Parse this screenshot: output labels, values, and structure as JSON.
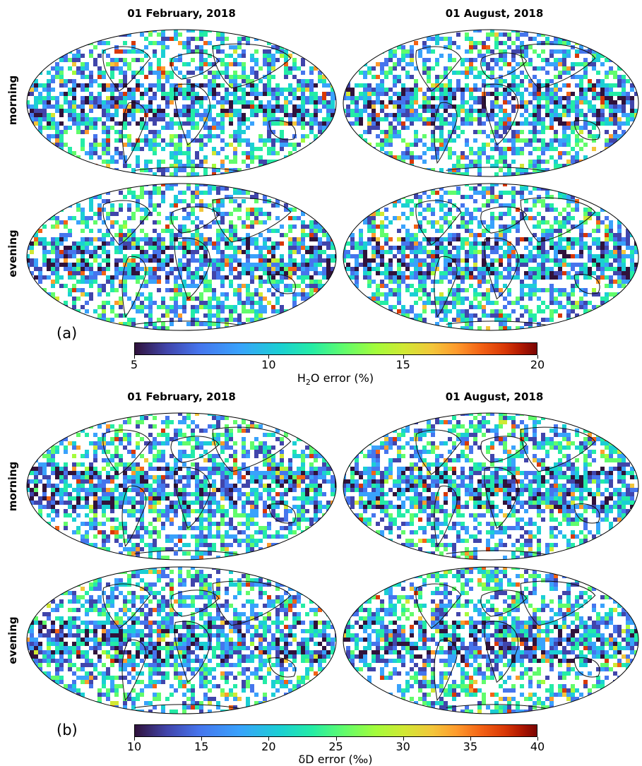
{
  "columns": [
    "01 February, 2018",
    "01 August, 2018"
  ],
  "rows": [
    "morning",
    "evening"
  ],
  "panels": [
    {
      "letter": "(a)",
      "colorbar": {
        "ticks": [
          "5",
          "10",
          "15",
          "20"
        ],
        "range": [
          5,
          20
        ],
        "label_main": "H",
        "label_sub": "2",
        "label_rest": "O error (%)"
      }
    },
    {
      "letter": "(b)",
      "colorbar": {
        "ticks": [
          "10",
          "15",
          "20",
          "25",
          "30",
          "35",
          "40"
        ],
        "range": [
          10,
          40
        ],
        "label_main": "δD error (‰)"
      }
    }
  ],
  "colormap": "turbo"
}
